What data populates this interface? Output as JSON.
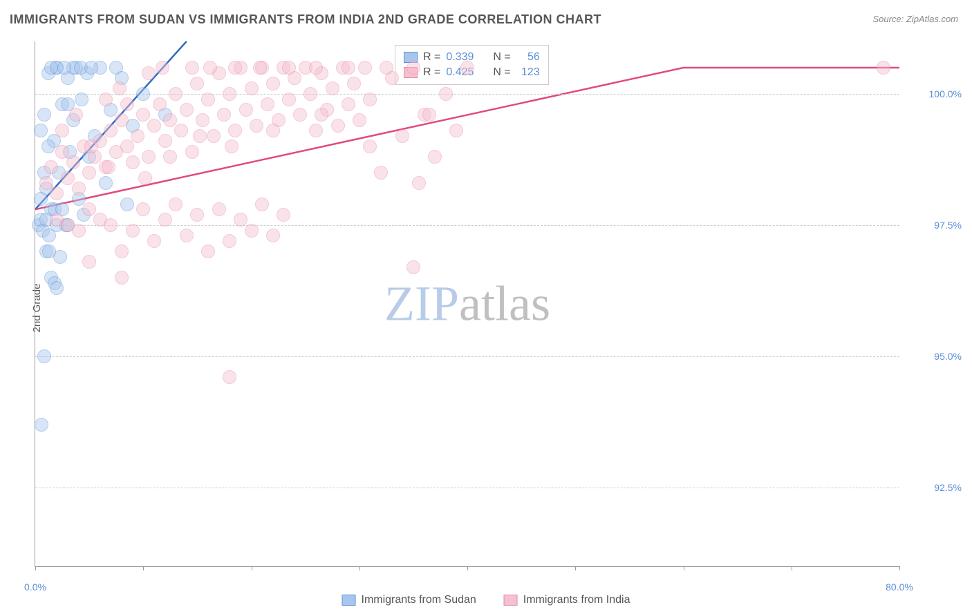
{
  "title": "IMMIGRANTS FROM SUDAN VS IMMIGRANTS FROM INDIA 2ND GRADE CORRELATION CHART",
  "source": "Source: ZipAtlas.com",
  "ylabel": "2nd Grade",
  "watermark": {
    "zip": "ZIP",
    "atlas": "atlas"
  },
  "chart": {
    "type": "scatter",
    "background_color": "#ffffff",
    "grid_color": "#cccccc",
    "axis_color": "#999999",
    "label_color": "#555555",
    "tick_color": "#5b8fd6",
    "title_fontsize": 18,
    "label_fontsize": 15,
    "tick_fontsize": 14,
    "xlim": [
      0,
      80
    ],
    "ylim": [
      91.0,
      101.0
    ],
    "yticks": [
      92.5,
      95.0,
      97.5,
      100.0
    ],
    "ytick_labels": [
      "92.5%",
      "95.0%",
      "97.5%",
      "100.0%"
    ],
    "xticks": [
      0,
      10,
      20,
      30,
      40,
      50,
      60,
      70,
      80
    ],
    "xtick_labels": [
      "0.0%",
      "",
      "",
      "",
      "",
      "",
      "",
      "",
      "80.0%"
    ],
    "marker_radius": 9,
    "marker_opacity": 0.45,
    "series": [
      {
        "name": "Immigrants from Sudan",
        "color_fill": "#a8c6ed",
        "color_stroke": "#5b8fd6",
        "R": 0.339,
        "N": 56,
        "trend_line": {
          "color": "#2e6bc4",
          "width": 2.5,
          "points": [
            [
              0,
              97.8
            ],
            [
              14,
              101.0
            ]
          ]
        },
        "points": [
          [
            0.5,
            99.3
          ],
          [
            0.8,
            99.6
          ],
          [
            1.0,
            98.2
          ],
          [
            1.2,
            100.4
          ],
          [
            1.5,
            97.8
          ],
          [
            1.7,
            99.1
          ],
          [
            2.0,
            100.5
          ],
          [
            2.2,
            98.5
          ],
          [
            2.5,
            99.8
          ],
          [
            2.8,
            97.5
          ],
          [
            3.0,
            100.3
          ],
          [
            3.2,
            98.9
          ],
          [
            3.5,
            99.5
          ],
          [
            3.8,
            100.5
          ],
          [
            4.0,
            98.0
          ],
          [
            4.3,
            99.9
          ],
          [
            4.5,
            97.7
          ],
          [
            4.8,
            100.4
          ],
          [
            5.0,
            98.8
          ],
          [
            5.5,
            99.2
          ],
          [
            6.0,
            100.5
          ],
          [
            6.5,
            98.3
          ],
          [
            7.0,
            99.7
          ],
          [
            7.5,
            100.5
          ],
          [
            8.0,
            100.3
          ],
          [
            8.5,
            97.9
          ],
          [
            9.0,
            99.4
          ],
          [
            10.0,
            100.0
          ],
          [
            12.0,
            99.6
          ],
          [
            0.3,
            97.5
          ],
          [
            0.5,
            97.6
          ],
          [
            0.7,
            97.4
          ],
          [
            1.0,
            97.6
          ],
          [
            1.3,
            97.3
          ],
          [
            1.5,
            96.5
          ],
          [
            1.8,
            96.4
          ],
          [
            2.0,
            96.3
          ],
          [
            2.3,
            96.9
          ],
          [
            0.8,
            95.0
          ],
          [
            0.6,
            93.7
          ],
          [
            3.5,
            100.5
          ],
          [
            4.2,
            100.5
          ],
          [
            5.2,
            100.5
          ],
          [
            2.0,
            100.5
          ],
          [
            2.7,
            100.5
          ],
          [
            1.5,
            100.5
          ],
          [
            2.0,
            97.5
          ],
          [
            3.0,
            97.5
          ],
          [
            1.0,
            97.0
          ],
          [
            1.3,
            97.0
          ],
          [
            1.8,
            97.8
          ],
          [
            2.5,
            97.8
          ],
          [
            0.5,
            98.0
          ],
          [
            0.8,
            98.5
          ],
          [
            1.2,
            99.0
          ],
          [
            3.0,
            99.8
          ]
        ]
      },
      {
        "name": "Immigrants from India",
        "color_fill": "#f5c0cf",
        "color_stroke": "#e68aa8",
        "R": 0.425,
        "N": 123,
        "trend_line": {
          "color": "#e24a7a",
          "width": 2.5,
          "points": [
            [
              0,
              97.8
            ],
            [
              60,
              100.5
            ],
            [
              80,
              100.5
            ]
          ]
        },
        "points": [
          [
            1.0,
            98.3
          ],
          [
            1.5,
            98.6
          ],
          [
            2.0,
            98.1
          ],
          [
            2.5,
            98.9
          ],
          [
            3.0,
            98.4
          ],
          [
            3.5,
            98.7
          ],
          [
            4.0,
            98.2
          ],
          [
            4.5,
            99.0
          ],
          [
            5.0,
            98.5
          ],
          [
            5.5,
            98.8
          ],
          [
            6.0,
            99.1
          ],
          [
            6.5,
            98.6
          ],
          [
            7.0,
            99.3
          ],
          [
            7.5,
            98.9
          ],
          [
            8.0,
            99.5
          ],
          [
            8.5,
            99.0
          ],
          [
            9.0,
            98.7
          ],
          [
            9.5,
            99.2
          ],
          [
            10.0,
            99.6
          ],
          [
            10.5,
            98.8
          ],
          [
            11.0,
            99.4
          ],
          [
            11.5,
            99.8
          ],
          [
            12.0,
            99.1
          ],
          [
            12.5,
            99.5
          ],
          [
            13.0,
            100.0
          ],
          [
            13.5,
            99.3
          ],
          [
            14.0,
            99.7
          ],
          [
            14.5,
            98.9
          ],
          [
            15.0,
            100.2
          ],
          [
            15.5,
            99.5
          ],
          [
            16.0,
            99.9
          ],
          [
            16.5,
            99.2
          ],
          [
            17.0,
            100.4
          ],
          [
            17.5,
            99.6
          ],
          [
            18.0,
            100.0
          ],
          [
            18.5,
            99.3
          ],
          [
            19.0,
            100.5
          ],
          [
            19.5,
            99.7
          ],
          [
            20.0,
            100.1
          ],
          [
            20.5,
            99.4
          ],
          [
            21.0,
            100.5
          ],
          [
            21.5,
            99.8
          ],
          [
            22.0,
            100.2
          ],
          [
            22.5,
            99.5
          ],
          [
            23.0,
            100.5
          ],
          [
            23.5,
            99.9
          ],
          [
            24.0,
            100.3
          ],
          [
            24.5,
            99.6
          ],
          [
            25.0,
            100.5
          ],
          [
            25.5,
            100.0
          ],
          [
            26.0,
            99.3
          ],
          [
            26.5,
            100.4
          ],
          [
            27.0,
            99.7
          ],
          [
            27.5,
            100.1
          ],
          [
            28.0,
            99.4
          ],
          [
            28.5,
            100.5
          ],
          [
            29.0,
            99.8
          ],
          [
            29.5,
            100.2
          ],
          [
            30.0,
            99.5
          ],
          [
            30.5,
            100.5
          ],
          [
            31.0,
            99.9
          ],
          [
            32.0,
            98.5
          ],
          [
            33.0,
            100.3
          ],
          [
            34.0,
            99.2
          ],
          [
            35.0,
            100.5
          ],
          [
            36.0,
            99.6
          ],
          [
            37.0,
            98.8
          ],
          [
            38.0,
            100.0
          ],
          [
            39.0,
            99.3
          ],
          [
            40.0,
            100.5
          ],
          [
            2.0,
            97.6
          ],
          [
            3.0,
            97.5
          ],
          [
            4.0,
            97.4
          ],
          [
            5.0,
            97.8
          ],
          [
            6.0,
            97.6
          ],
          [
            7.0,
            97.5
          ],
          [
            8.0,
            97.0
          ],
          [
            9.0,
            97.4
          ],
          [
            10.0,
            97.8
          ],
          [
            11.0,
            97.2
          ],
          [
            12.0,
            97.6
          ],
          [
            13.0,
            97.9
          ],
          [
            14.0,
            97.3
          ],
          [
            15.0,
            97.7
          ],
          [
            16.0,
            97.0
          ],
          [
            17.0,
            97.8
          ],
          [
            18.0,
            97.2
          ],
          [
            19.0,
            97.6
          ],
          [
            20.0,
            97.4
          ],
          [
            21.0,
            97.9
          ],
          [
            22.0,
            97.3
          ],
          [
            23.0,
            97.7
          ],
          [
            5.0,
            96.8
          ],
          [
            8.0,
            96.5
          ],
          [
            18.0,
            94.6
          ],
          [
            35.0,
            96.7
          ],
          [
            35.5,
            98.3
          ],
          [
            36.5,
            99.6
          ],
          [
            78.5,
            100.5
          ],
          [
            6.5,
            99.9
          ],
          [
            7.8,
            100.1
          ],
          [
            10.5,
            100.4
          ],
          [
            11.8,
            100.5
          ],
          [
            14.5,
            100.5
          ],
          [
            16.2,
            100.5
          ],
          [
            18.5,
            100.5
          ],
          [
            20.8,
            100.5
          ],
          [
            23.5,
            100.5
          ],
          [
            26.0,
            100.5
          ],
          [
            29.0,
            100.5
          ],
          [
            32.5,
            100.5
          ],
          [
            2.5,
            99.3
          ],
          [
            3.8,
            99.6
          ],
          [
            5.2,
            99.0
          ],
          [
            6.8,
            98.6
          ],
          [
            8.5,
            99.8
          ],
          [
            10.2,
            98.4
          ],
          [
            12.5,
            98.8
          ],
          [
            15.2,
            99.2
          ],
          [
            18.2,
            99.0
          ],
          [
            22.0,
            99.3
          ],
          [
            26.5,
            99.6
          ],
          [
            31.0,
            99.0
          ]
        ]
      }
    ]
  },
  "legend": {
    "rows": [
      {
        "swatch_fill": "#a8c6ed",
        "swatch_stroke": "#5b8fd6",
        "r_label": "R =",
        "r_val": "0.339",
        "n_label": "N =",
        "n_val": "56"
      },
      {
        "swatch_fill": "#f5c0cf",
        "swatch_stroke": "#e68aa8",
        "r_label": "R =",
        "r_val": "0.425",
        "n_label": "N =",
        "n_val": "123"
      }
    ]
  },
  "bottom_legend": [
    {
      "swatch_fill": "#a8c6ed",
      "swatch_stroke": "#5b8fd6",
      "label": "Immigrants from Sudan"
    },
    {
      "swatch_fill": "#f5c0cf",
      "swatch_stroke": "#e68aa8",
      "label": "Immigrants from India"
    }
  ]
}
